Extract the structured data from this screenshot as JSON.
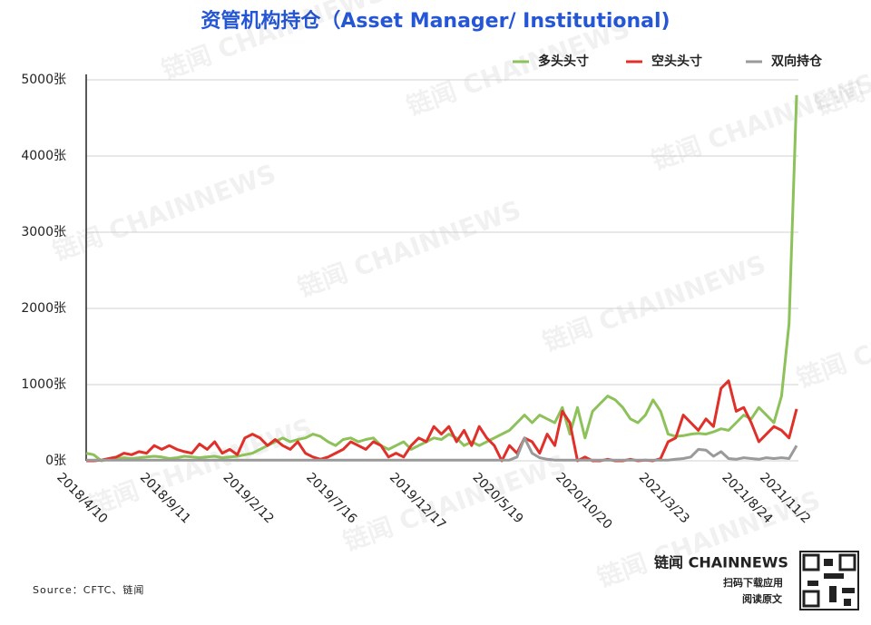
{
  "chart_data": {
    "type": "line",
    "title": "资管机构持仓（Asset Manager/ Institutional)",
    "source": "Source：CFTC、链闻",
    "watermark": "链闻 CHAINNEWS",
    "brand": "链闻 CHAINNEWS",
    "brand_sub1": "扫码下载应用",
    "brand_sub2": "阅读原文",
    "categories": [
      "2018/4/10",
      null,
      null,
      null,
      null,
      null,
      null,
      null,
      null,
      null,
      null,
      "2018/9/11",
      null,
      null,
      null,
      null,
      null,
      null,
      null,
      null,
      null,
      null,
      "2019/2/12",
      null,
      null,
      null,
      null,
      null,
      null,
      null,
      null,
      null,
      null,
      "2019/7/16",
      null,
      null,
      null,
      null,
      null,
      null,
      null,
      null,
      null,
      null,
      "2019/12/17",
      null,
      null,
      null,
      null,
      null,
      null,
      null,
      null,
      null,
      null,
      "2020/5/19",
      null,
      null,
      null,
      null,
      null,
      null,
      null,
      null,
      null,
      null,
      "2020/10/20",
      null,
      null,
      null,
      null,
      null,
      null,
      null,
      null,
      null,
      null,
      "2021/3/23",
      null,
      null,
      null,
      null,
      null,
      null,
      null,
      null,
      null,
      null,
      "2021/8/24",
      null,
      null,
      null,
      null,
      "2021/11/2",
      null
    ],
    "series": [
      {
        "name": "多头头寸",
        "color": "#8dc15a",
        "values": [
          100,
          80,
          0,
          20,
          30,
          40,
          30,
          40,
          50,
          60,
          50,
          30,
          40,
          60,
          50,
          40,
          50,
          60,
          40,
          50,
          60,
          80,
          100,
          150,
          200,
          250,
          300,
          250,
          280,
          300,
          350,
          320,
          250,
          200,
          280,
          300,
          250,
          280,
          300,
          200,
          150,
          200,
          250,
          150,
          200,
          250,
          300,
          280,
          350,
          300,
          200,
          250,
          200,
          250,
          300,
          350,
          400,
          500,
          600,
          500,
          600,
          550,
          500,
          700,
          350,
          700,
          300,
          650,
          750,
          850,
          800,
          700,
          550,
          500,
          600,
          800,
          650,
          350,
          320,
          330,
          350,
          360,
          350,
          380,
          420,
          400,
          500,
          600,
          550,
          700,
          600,
          500,
          850,
          1800,
          4800
        ]
      },
      {
        "name": "空头头寸",
        "color": "#e0302a",
        "values": [
          0,
          0,
          10,
          30,
          50,
          100,
          80,
          120,
          100,
          200,
          150,
          200,
          150,
          120,
          100,
          220,
          150,
          250,
          100,
          150,
          80,
          300,
          350,
          300,
          200,
          280,
          200,
          150,
          250,
          100,
          50,
          20,
          50,
          100,
          150,
          250,
          200,
          150,
          250,
          200,
          50,
          100,
          50,
          200,
          300,
          250,
          450,
          350,
          450,
          250,
          400,
          200,
          450,
          300,
          200,
          0,
          200,
          100,
          300,
          250,
          100,
          350,
          200,
          650,
          500,
          0,
          50,
          0,
          0,
          20,
          0,
          0,
          20,
          0,
          10,
          0,
          30,
          250,
          300,
          600,
          500,
          400,
          550,
          450,
          950,
          1050,
          650,
          700,
          500,
          250,
          350,
          450,
          400,
          300,
          680
        ]
      },
      {
        "name": "双向持仓",
        "color": "#9a9a9a",
        "values": [
          10,
          10,
          10,
          10,
          10,
          10,
          10,
          10,
          10,
          10,
          10,
          10,
          10,
          10,
          10,
          10,
          10,
          10,
          10,
          10,
          10,
          10,
          10,
          10,
          10,
          10,
          10,
          10,
          10,
          10,
          10,
          10,
          10,
          10,
          10,
          10,
          10,
          10,
          10,
          10,
          10,
          10,
          10,
          10,
          10,
          10,
          10,
          10,
          10,
          10,
          10,
          10,
          10,
          10,
          10,
          10,
          10,
          50,
          300,
          100,
          40,
          20,
          10,
          10,
          10,
          10,
          10,
          10,
          10,
          10,
          10,
          10,
          10,
          10,
          10,
          10,
          10,
          10,
          20,
          30,
          50,
          150,
          140,
          60,
          120,
          30,
          20,
          40,
          30,
          20,
          40,
          30,
          40,
          30,
          200
        ]
      }
    ],
    "ylim": [
      0,
      5000
    ],
    "yticks": [
      {
        "value": 0,
        "label": "0张"
      },
      {
        "value": 1000,
        "label": "1000张"
      },
      {
        "value": 2000,
        "label": "2000张"
      },
      {
        "value": 3000,
        "label": "3000张"
      },
      {
        "value": 4000,
        "label": "4000张"
      },
      {
        "value": 5000,
        "label": "5000张"
      }
    ],
    "grid": true,
    "legend": "top-right"
  }
}
